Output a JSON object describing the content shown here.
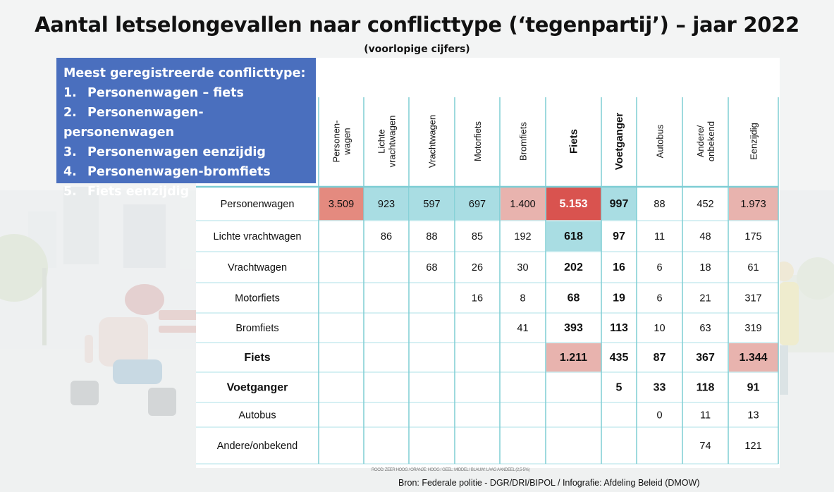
{
  "chart_data": {
    "type": "table",
    "title": "Aantal letselongevallen naar conflicttype (‘tegenpartij’) – jaar 2022",
    "subtitle": "(voorlopige cijfers)",
    "callout": {
      "heading": "Meest geregistreerde conflicttype:",
      "items": [
        {
          "num": "1.",
          "text": "Personenwagen – fiets"
        },
        {
          "num": "2.",
          "text": "Personenwagen-personenwagen"
        },
        {
          "num": "3.",
          "text": "Personenwagen eenzijdig"
        },
        {
          "num": "4.",
          "text": "Personenwagen-bromfiets"
        },
        {
          "num": "5.",
          "text": "Fiets eenzijdig"
        }
      ]
    },
    "columns": [
      {
        "lines": [
          "Personen-",
          "wagen"
        ],
        "bold": false
      },
      {
        "lines": [
          "Lichte",
          "vrachtwagen"
        ],
        "bold": false
      },
      {
        "lines": [
          "Vrachtwagen"
        ],
        "bold": false
      },
      {
        "lines": [
          "Motorfiets"
        ],
        "bold": false
      },
      {
        "lines": [
          "Bromfiets"
        ],
        "bold": false
      },
      {
        "lines": [
          "Fiets"
        ],
        "bold": true
      },
      {
        "lines": [
          "Voetganger"
        ],
        "bold": true
      },
      {
        "lines": [
          "Autobus"
        ],
        "bold": false
      },
      {
        "lines": [
          "Andere/",
          "onbekend"
        ],
        "bold": false
      },
      {
        "lines": [
          "Eenzijdig"
        ],
        "bold": false
      }
    ],
    "bold_columns": [
      5,
      6
    ],
    "rows": [
      {
        "label": "Personenwagen",
        "bold": false,
        "values": [
          "3.509",
          "923",
          "597",
          "697",
          "1.400",
          "5.153",
          "997",
          "88",
          "452",
          "1.973"
        ]
      },
      {
        "label": "Lichte vrachtwagen",
        "bold": false,
        "values": [
          "",
          "86",
          "88",
          "85",
          "192",
          "618",
          "97",
          "11",
          "48",
          "175"
        ]
      },
      {
        "label": "Vrachtwagen",
        "bold": false,
        "values": [
          "",
          "",
          "68",
          "26",
          "30",
          "202",
          "16",
          "6",
          "18",
          "61"
        ]
      },
      {
        "label": "Motorfiets",
        "bold": false,
        "values": [
          "",
          "",
          "",
          "16",
          "8",
          "68",
          "19",
          "6",
          "21",
          "317"
        ]
      },
      {
        "label": "Bromfiets",
        "bold": false,
        "values": [
          "",
          "",
          "",
          "",
          "41",
          "393",
          "113",
          "10",
          "63",
          "319"
        ]
      },
      {
        "label": "Fiets",
        "bold": true,
        "values": [
          "",
          "",
          "",
          "",
          "",
          "1.211",
          "435",
          "87",
          "367",
          "1.344"
        ]
      },
      {
        "label": "Voetganger",
        "bold": true,
        "values": [
          "",
          "",
          "",
          "",
          "",
          "",
          "5",
          "33",
          "118",
          "91"
        ]
      },
      {
        "label": "Autobus",
        "bold": false,
        "values": [
          "",
          "",
          "",
          "",
          "",
          "",
          "",
          "0",
          "11",
          "13"
        ]
      },
      {
        "label": "Andere/onbekend",
        "bold": false,
        "values": [
          "",
          "",
          "",
          "",
          "",
          "",
          "",
          "",
          "74",
          "121"
        ]
      }
    ],
    "highlights": [
      {
        "row": 0,
        "col": 0,
        "level": "high"
      },
      {
        "row": 0,
        "col": 1,
        "level": "light"
      },
      {
        "row": 0,
        "col": 2,
        "level": "light"
      },
      {
        "row": 0,
        "col": 3,
        "level": "light"
      },
      {
        "row": 0,
        "col": 4,
        "level": "medium"
      },
      {
        "row": 0,
        "col": 5,
        "level": "very-high"
      },
      {
        "row": 0,
        "col": 6,
        "level": "light"
      },
      {
        "row": 0,
        "col": 9,
        "level": "medium"
      },
      {
        "row": 1,
        "col": 5,
        "level": "light"
      },
      {
        "row": 5,
        "col": 5,
        "level": "medium"
      },
      {
        "row": 5,
        "col": 9,
        "level": "medium"
      }
    ],
    "colors": {
      "very-high": "#d9534f",
      "high": "#e48a7f",
      "medium": "#e8b3ae",
      "light": "#a9dde3",
      "callout": "#4a6fbe",
      "grid_vertical": "#7ecdd4",
      "grid_horizontal": "#c9ecef"
    },
    "legend_note": "ROOD: ZEER HOOG / ORANJE: HOOG / GEEL: MIDDEL / BLAUW: LAAG AANDEEL (2,5-5%)",
    "source": "Bron: Federale politie -  DGR/DRI/BIPOL / Infografie: Afdeling Beleid (DMOW)"
  }
}
